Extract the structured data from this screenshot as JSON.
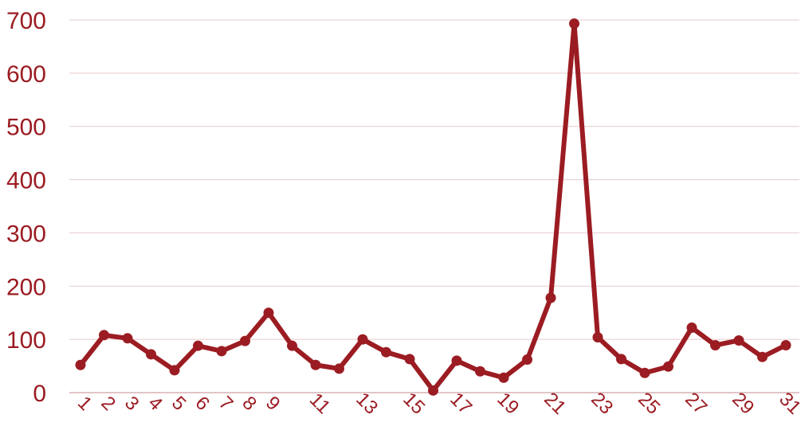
{
  "chart_data": {
    "type": "line",
    "x": [
      1,
      2,
      3,
      4,
      5,
      6,
      7,
      8,
      9,
      10,
      11,
      12,
      13,
      14,
      15,
      16,
      17,
      18,
      19,
      20,
      21,
      22,
      23,
      24,
      25,
      26,
      27,
      28,
      29,
      30,
      31
    ],
    "x_tick_labels": [
      "1",
      "2",
      "3",
      "4",
      "5",
      "6",
      "7",
      "8",
      "9",
      "11",
      "13",
      "15",
      "17",
      "19",
      "21",
      "23",
      "25",
      "27",
      "29",
      "31"
    ],
    "x_tick_positions": [
      1,
      2,
      3,
      4,
      5,
      6,
      7,
      8,
      9,
      11,
      13,
      15,
      17,
      19,
      21,
      23,
      25,
      27,
      29,
      31
    ],
    "series": [
      {
        "values": [
          52,
          108,
          102,
          72,
          42,
          88,
          78,
          97,
          150,
          88,
          52,
          45,
          100,
          76,
          63,
          4,
          60,
          40,
          28,
          62,
          178,
          693,
          104,
          63,
          37,
          49,
          122,
          89,
          98,
          67,
          89
        ]
      }
    ],
    "ylim": [
      0,
      700
    ],
    "yticks": [
      0,
      100,
      200,
      300,
      400,
      500,
      600,
      700
    ],
    "title": "",
    "xlabel": "",
    "ylabel": "",
    "grid": true,
    "line_color": "#9b1c22"
  }
}
